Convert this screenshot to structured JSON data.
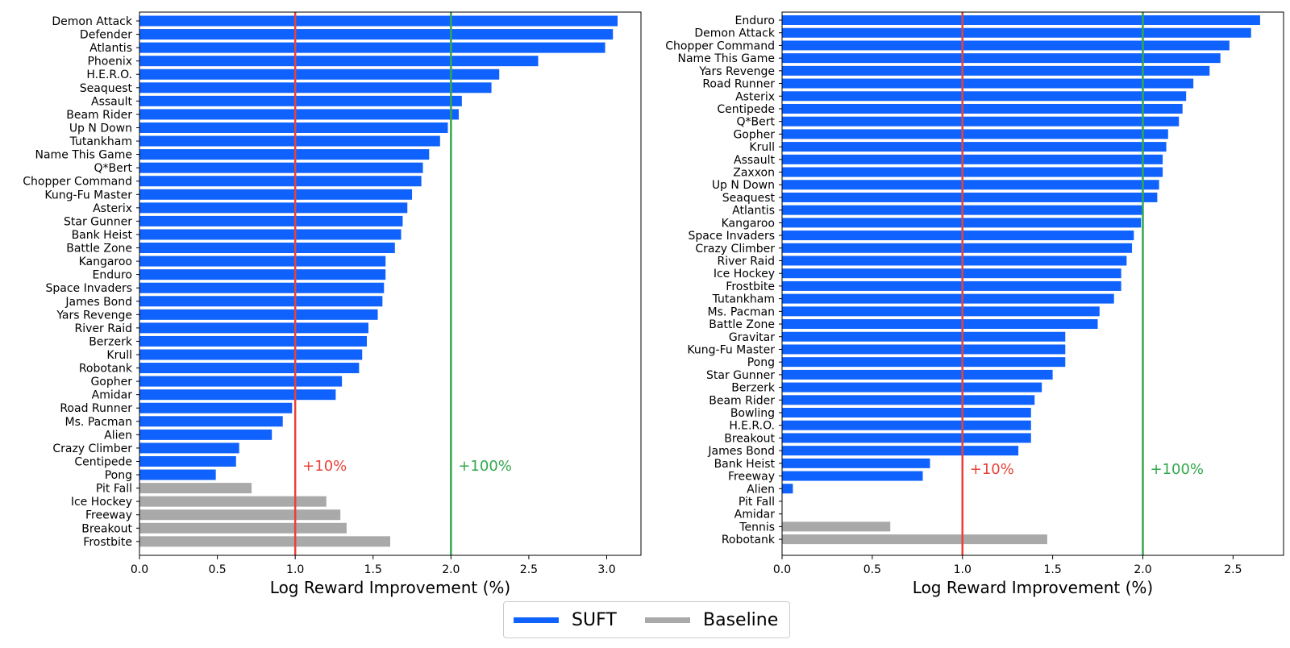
{
  "colors": {
    "suft": "#0f62fe",
    "baseline": "#a9a9a9",
    "red_line": "#e8433a",
    "green_line": "#33a84e"
  },
  "legend": {
    "suft_label": "SUFT",
    "baseline_label": "Baseline"
  },
  "chart_data": [
    {
      "type": "bar",
      "orientation": "horizontal",
      "xlabel": "Log Reward Improvement (%)",
      "xlim": [
        0,
        3.22
      ],
      "xticks": [
        "0.0",
        "0.5",
        "1.0",
        "1.5",
        "2.0",
        "2.5",
        "3.0"
      ],
      "reference_lines": [
        {
          "x": 1.0,
          "label": "+10%",
          "color": "red"
        },
        {
          "x": 2.0,
          "label": "+100%",
          "color": "green"
        }
      ],
      "categories": [
        "Demon Attack",
        "Defender",
        "Atlantis",
        "Phoenix",
        "H.E.R.O.",
        "Seaquest",
        "Assault",
        "Beam Rider",
        "Up N Down",
        "Tutankham",
        "Name This Game",
        "Q*Bert",
        "Chopper Command",
        "Kung-Fu Master",
        "Asterix",
        "Star Gunner",
        "Bank Heist",
        "Battle Zone",
        "Kangaroo",
        "Enduro",
        "Space Invaders",
        "James Bond",
        "Yars Revenge",
        "River Raid",
        "Berzerk",
        "Krull",
        "Robotank",
        "Gopher",
        "Amidar",
        "Road Runner",
        "Ms. Pacman",
        "Alien",
        "Crazy Climber",
        "Centipede",
        "Pong",
        "Pit Fall",
        "Ice Hockey",
        "Freeway",
        "Breakout",
        "Frostbite"
      ],
      "values": [
        3.07,
        3.04,
        2.99,
        2.56,
        2.31,
        2.26,
        2.07,
        2.05,
        1.98,
        1.93,
        1.86,
        1.82,
        1.81,
        1.75,
        1.72,
        1.69,
        1.68,
        1.64,
        1.58,
        1.58,
        1.57,
        1.56,
        1.53,
        1.47,
        1.46,
        1.43,
        1.41,
        1.3,
        1.26,
        0.98,
        0.92,
        0.85,
        0.64,
        0.62,
        0.49,
        0.72,
        1.2,
        1.29,
        1.33,
        1.61
      ],
      "series_by_bar": [
        "SUFT",
        "SUFT",
        "SUFT",
        "SUFT",
        "SUFT",
        "SUFT",
        "SUFT",
        "SUFT",
        "SUFT",
        "SUFT",
        "SUFT",
        "SUFT",
        "SUFT",
        "SUFT",
        "SUFT",
        "SUFT",
        "SUFT",
        "SUFT",
        "SUFT",
        "SUFT",
        "SUFT",
        "SUFT",
        "SUFT",
        "SUFT",
        "SUFT",
        "SUFT",
        "SUFT",
        "SUFT",
        "SUFT",
        "SUFT",
        "SUFT",
        "SUFT",
        "SUFT",
        "SUFT",
        "SUFT",
        "Baseline",
        "Baseline",
        "Baseline",
        "Baseline",
        "Baseline"
      ]
    },
    {
      "type": "bar",
      "orientation": "horizontal",
      "xlabel": "Log Reward Improvement (%)",
      "xlim": [
        0,
        2.78
      ],
      "xticks": [
        "0.0",
        "0.5",
        "1.0",
        "1.5",
        "2.0",
        "2.5"
      ],
      "reference_lines": [
        {
          "x": 1.0,
          "label": "+10%",
          "color": "red"
        },
        {
          "x": 2.0,
          "label": "+100%",
          "color": "green"
        }
      ],
      "categories": [
        "Enduro",
        "Demon Attack",
        "Chopper Command",
        "Name This Game",
        "Yars Revenge",
        "Road Runner",
        "Asterix",
        "Centipede",
        "Q*Bert",
        "Gopher",
        "Krull",
        "Assault",
        "Zaxxon",
        "Up N Down",
        "Seaquest",
        "Atlantis",
        "Kangaroo",
        "Space Invaders",
        "Crazy Climber",
        "River Raid",
        "Ice Hockey",
        "Frostbite",
        "Tutankham",
        "Ms. Pacman",
        "Battle Zone",
        "Gravitar",
        "Kung-Fu Master",
        "Pong",
        "Star Gunner",
        "Berzerk",
        "Beam Rider",
        "Bowling",
        "H.E.R.O.",
        "Breakout",
        "James Bond",
        "Bank Heist",
        "Freeway",
        "Alien",
        "Pit Fall",
        "Amidar",
        "Tennis",
        "Robotank"
      ],
      "values": [
        2.65,
        2.6,
        2.48,
        2.43,
        2.37,
        2.28,
        2.24,
        2.22,
        2.2,
        2.14,
        2.13,
        2.11,
        2.11,
        2.09,
        2.08,
        2.0,
        1.99,
        1.95,
        1.94,
        1.91,
        1.88,
        1.88,
        1.84,
        1.76,
        1.75,
        1.57,
        1.57,
        1.57,
        1.5,
        1.44,
        1.4,
        1.38,
        1.38,
        1.38,
        1.31,
        0.82,
        0.78,
        0.06,
        0.0,
        0.0,
        0.6,
        1.47
      ],
      "series_by_bar": [
        "SUFT",
        "SUFT",
        "SUFT",
        "SUFT",
        "SUFT",
        "SUFT",
        "SUFT",
        "SUFT",
        "SUFT",
        "SUFT",
        "SUFT",
        "SUFT",
        "SUFT",
        "SUFT",
        "SUFT",
        "SUFT",
        "SUFT",
        "SUFT",
        "SUFT",
        "SUFT",
        "SUFT",
        "SUFT",
        "SUFT",
        "SUFT",
        "SUFT",
        "SUFT",
        "SUFT",
        "SUFT",
        "SUFT",
        "SUFT",
        "SUFT",
        "SUFT",
        "SUFT",
        "SUFT",
        "SUFT",
        "SUFT",
        "SUFT",
        "SUFT",
        "SUFT",
        "SUFT",
        "Baseline",
        "Baseline"
      ]
    }
  ]
}
